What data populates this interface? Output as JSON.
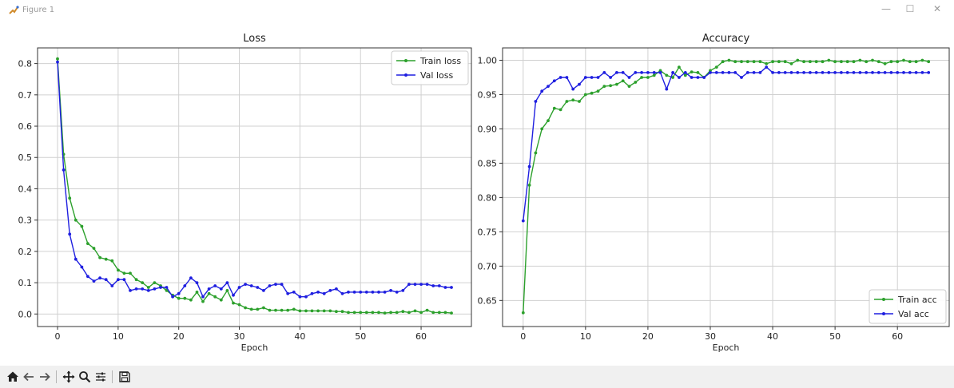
{
  "window": {
    "title": "Figure 1",
    "minimize_glyph": "—",
    "maximize_glyph": "☐",
    "close_glyph": "✕"
  },
  "toolbar": {
    "icons": [
      "home-icon",
      "back-icon",
      "forward-icon",
      "pan-icon",
      "zoom-icon",
      "configure-subplots-icon",
      "save-icon"
    ]
  },
  "colors": {
    "train": "#2ca02c",
    "val": "#1f1fe0",
    "grid": "#d0d0d0",
    "axis": "#333333"
  },
  "chart_data": [
    {
      "type": "line",
      "title": "Loss",
      "xlabel": "Epoch",
      "ylabel": "",
      "xlim": [
        -3.3,
        68.3
      ],
      "ylim": [
        -0.04,
        0.85
      ],
      "xticks": [
        0,
        10,
        20,
        30,
        40,
        50,
        60
      ],
      "yticks": [
        0.0,
        0.1,
        0.2,
        0.3,
        0.4,
        0.5,
        0.6,
        0.7,
        0.8
      ],
      "ytick_labels": [
        "0.0",
        "0.1",
        "0.2",
        "0.3",
        "0.4",
        "0.5",
        "0.6",
        "0.7",
        "0.8"
      ],
      "grid": true,
      "legend_position": "upper right",
      "series": [
        {
          "name": "Train loss",
          "color": "#2ca02c",
          "values": [
            0.815,
            0.51,
            0.37,
            0.3,
            0.28,
            0.225,
            0.21,
            0.18,
            0.175,
            0.17,
            0.14,
            0.13,
            0.13,
            0.11,
            0.1,
            0.085,
            0.1,
            0.09,
            0.075,
            0.06,
            0.05,
            0.05,
            0.045,
            0.07,
            0.04,
            0.065,
            0.055,
            0.045,
            0.075,
            0.035,
            0.03,
            0.02,
            0.015,
            0.015,
            0.02,
            0.012,
            0.012,
            0.012,
            0.012,
            0.015,
            0.01,
            0.01,
            0.01,
            0.01,
            0.01,
            0.01,
            0.008,
            0.008,
            0.005,
            0.005,
            0.005,
            0.005,
            0.005,
            0.005,
            0.003,
            0.005,
            0.005,
            0.008,
            0.005,
            0.01,
            0.005,
            0.012,
            0.005,
            0.005,
            0.005,
            0.003
          ]
        },
        {
          "name": "Val loss",
          "color": "#1f1fe0",
          "values": [
            0.805,
            0.46,
            0.255,
            0.175,
            0.15,
            0.12,
            0.105,
            0.115,
            0.11,
            0.09,
            0.11,
            0.11,
            0.075,
            0.08,
            0.08,
            0.075,
            0.08,
            0.085,
            0.085,
            0.055,
            0.065,
            0.09,
            0.115,
            0.1,
            0.055,
            0.08,
            0.09,
            0.08,
            0.1,
            0.06,
            0.085,
            0.095,
            0.09,
            0.085,
            0.075,
            0.09,
            0.095,
            0.095,
            0.065,
            0.07,
            0.055,
            0.055,
            0.065,
            0.07,
            0.065,
            0.075,
            0.08,
            0.065,
            0.07,
            0.07,
            0.07,
            0.07,
            0.07,
            0.07,
            0.07,
            0.075,
            0.07,
            0.075,
            0.095,
            0.095,
            0.095,
            0.095,
            0.09,
            0.09,
            0.085,
            0.085
          ]
        }
      ]
    },
    {
      "type": "line",
      "title": "Accuracy",
      "xlabel": "Epoch",
      "ylabel": "",
      "xlim": [
        -3.3,
        68.3
      ],
      "ylim": [
        0.612,
        1.018
      ],
      "xticks": [
        0,
        10,
        20,
        30,
        40,
        50,
        60
      ],
      "yticks": [
        0.65,
        0.7,
        0.75,
        0.8,
        0.85,
        0.9,
        0.95,
        1.0
      ],
      "ytick_labels": [
        "0.65",
        "0.70",
        "0.75",
        "0.80",
        "0.85",
        "0.90",
        "0.95",
        "1.00"
      ],
      "grid": true,
      "legend_position": "lower right",
      "series": [
        {
          "name": "Train acc",
          "color": "#2ca02c",
          "values": [
            0.632,
            0.818,
            0.865,
            0.9,
            0.912,
            0.93,
            0.928,
            0.94,
            0.942,
            0.94,
            0.95,
            0.952,
            0.955,
            0.962,
            0.963,
            0.965,
            0.97,
            0.962,
            0.968,
            0.975,
            0.975,
            0.978,
            0.985,
            0.978,
            0.975,
            0.99,
            0.978,
            0.983,
            0.982,
            0.975,
            0.985,
            0.99,
            0.998,
            1.0,
            0.998,
            0.998,
            0.998,
            0.998,
            0.998,
            0.995,
            0.998,
            0.998,
            0.998,
            0.995,
            1.0,
            0.998,
            0.998,
            0.998,
            0.998,
            1.0,
            0.998,
            0.998,
            0.998,
            0.998,
            1.0,
            0.998,
            1.0,
            0.998,
            0.995,
            0.998,
            0.998,
            1.0,
            0.998,
            0.998,
            1.0,
            0.998
          ]
        },
        {
          "name": "Val acc",
          "color": "#1f1fe0",
          "values": [
            0.766,
            0.845,
            0.94,
            0.955,
            0.962,
            0.97,
            0.975,
            0.975,
            0.958,
            0.965,
            0.975,
            0.975,
            0.975,
            0.982,
            0.975,
            0.982,
            0.982,
            0.975,
            0.982,
            0.982,
            0.982,
            0.982,
            0.982,
            0.958,
            0.982,
            0.975,
            0.982,
            0.975,
            0.975,
            0.975,
            0.982,
            0.982,
            0.982,
            0.982,
            0.982,
            0.975,
            0.982,
            0.982,
            0.982,
            0.99,
            0.982,
            0.982,
            0.982,
            0.982,
            0.982,
            0.982,
            0.982,
            0.982,
            0.982,
            0.982,
            0.982,
            0.982,
            0.982,
            0.982,
            0.982,
            0.982,
            0.982,
            0.982,
            0.982,
            0.982,
            0.982,
            0.982,
            0.982,
            0.982,
            0.982,
            0.982
          ]
        }
      ]
    }
  ]
}
